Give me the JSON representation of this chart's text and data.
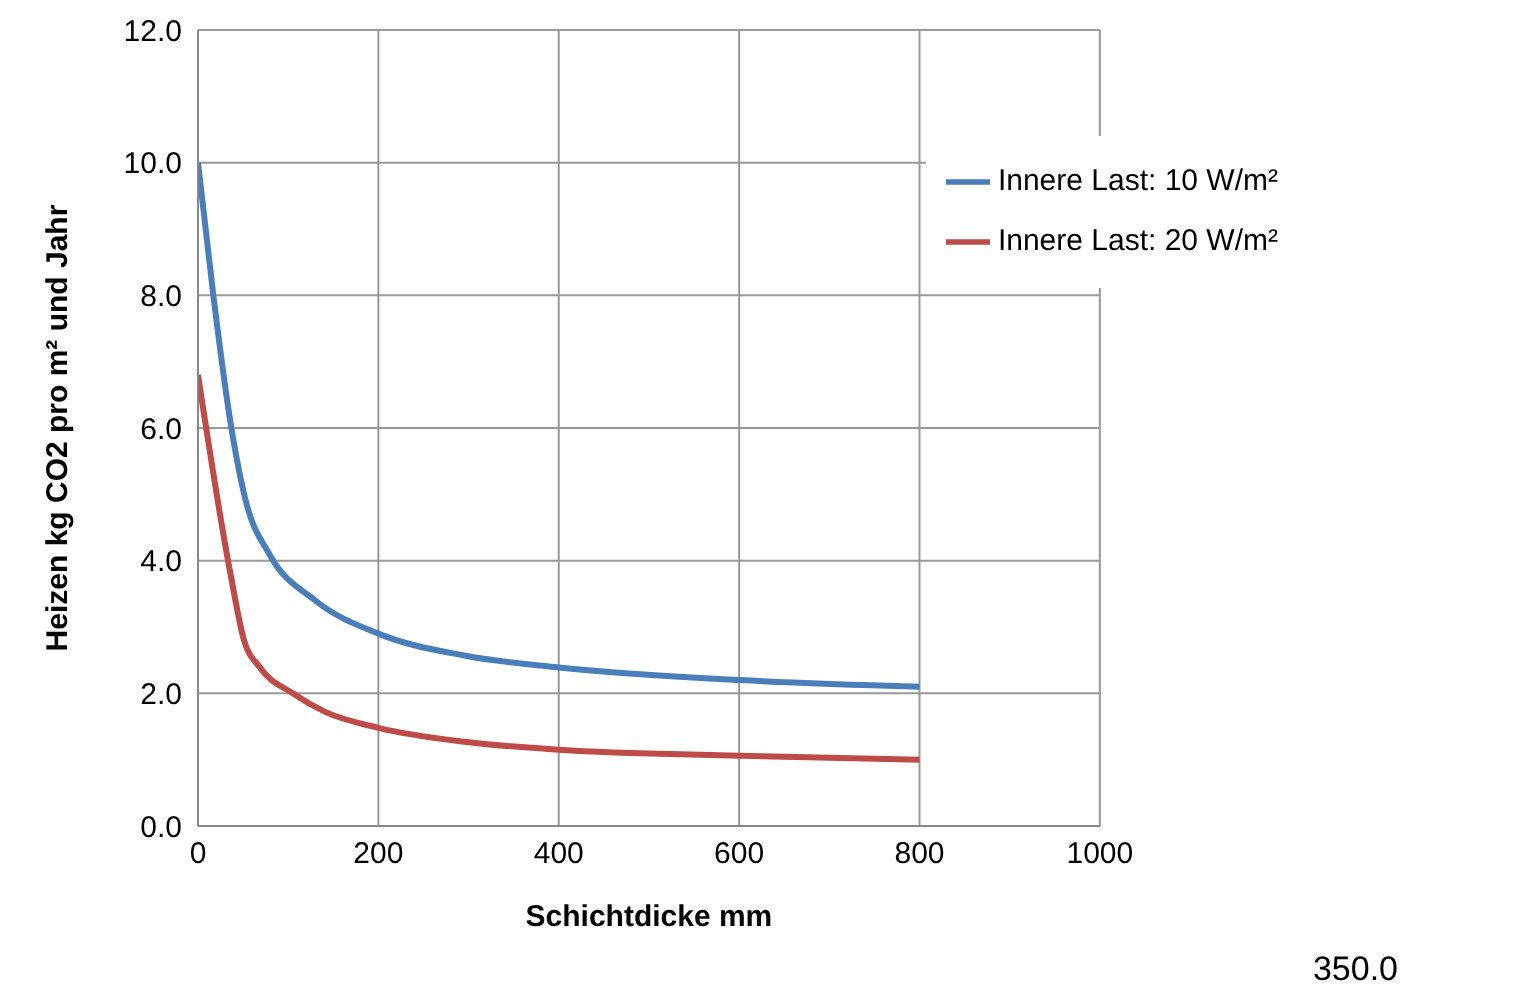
{
  "chart_data": {
    "type": "line",
    "xlabel": "Schichtdicke mm",
    "ylabel": "Heizen kg CO2 pro m² und Jahr",
    "xlim": [
      0,
      1000
    ],
    "xticks": [
      0,
      200,
      400,
      600,
      800,
      1000
    ],
    "ylim": [
      0,
      12
    ],
    "yticks": [
      {
        "value": 0,
        "label": "0.0"
      },
      {
        "value": 2,
        "label": "2.0"
      },
      {
        "value": 4,
        "label": "4.0"
      },
      {
        "value": 6,
        "label": "6.0"
      },
      {
        "value": 8,
        "label": "8.0"
      },
      {
        "value": 10,
        "label": "10.0"
      },
      {
        "value": 12,
        "label": "12.0"
      }
    ],
    "grid": true,
    "legend": "top right",
    "marker": "none",
    "line_style": "solid",
    "annotations": [
      "350.0"
    ],
    "series": [
      {
        "name": "Innere Last: 10 W/m²",
        "color": "#4a7ebb",
        "x": [
          0,
          17,
          37,
          53,
          79,
          130,
          200,
          295,
          400,
          600,
          800
        ],
        "values": [
          10.0,
          8.0,
          6.0,
          4.9,
          4.1,
          3.4,
          2.9,
          2.57,
          2.39,
          2.2,
          2.1
        ]
      },
      {
        "name": "Innere Last: 20 W/m²",
        "color": "#be4b48",
        "x": [
          0,
          36,
          51,
          68,
          105,
          141,
          200,
          295,
          400,
          600,
          800
        ],
        "values": [
          6.8,
          3.8,
          2.8,
          2.4,
          2.0,
          1.72,
          1.48,
          1.27,
          1.15,
          1.06,
          1.0
        ]
      }
    ]
  }
}
